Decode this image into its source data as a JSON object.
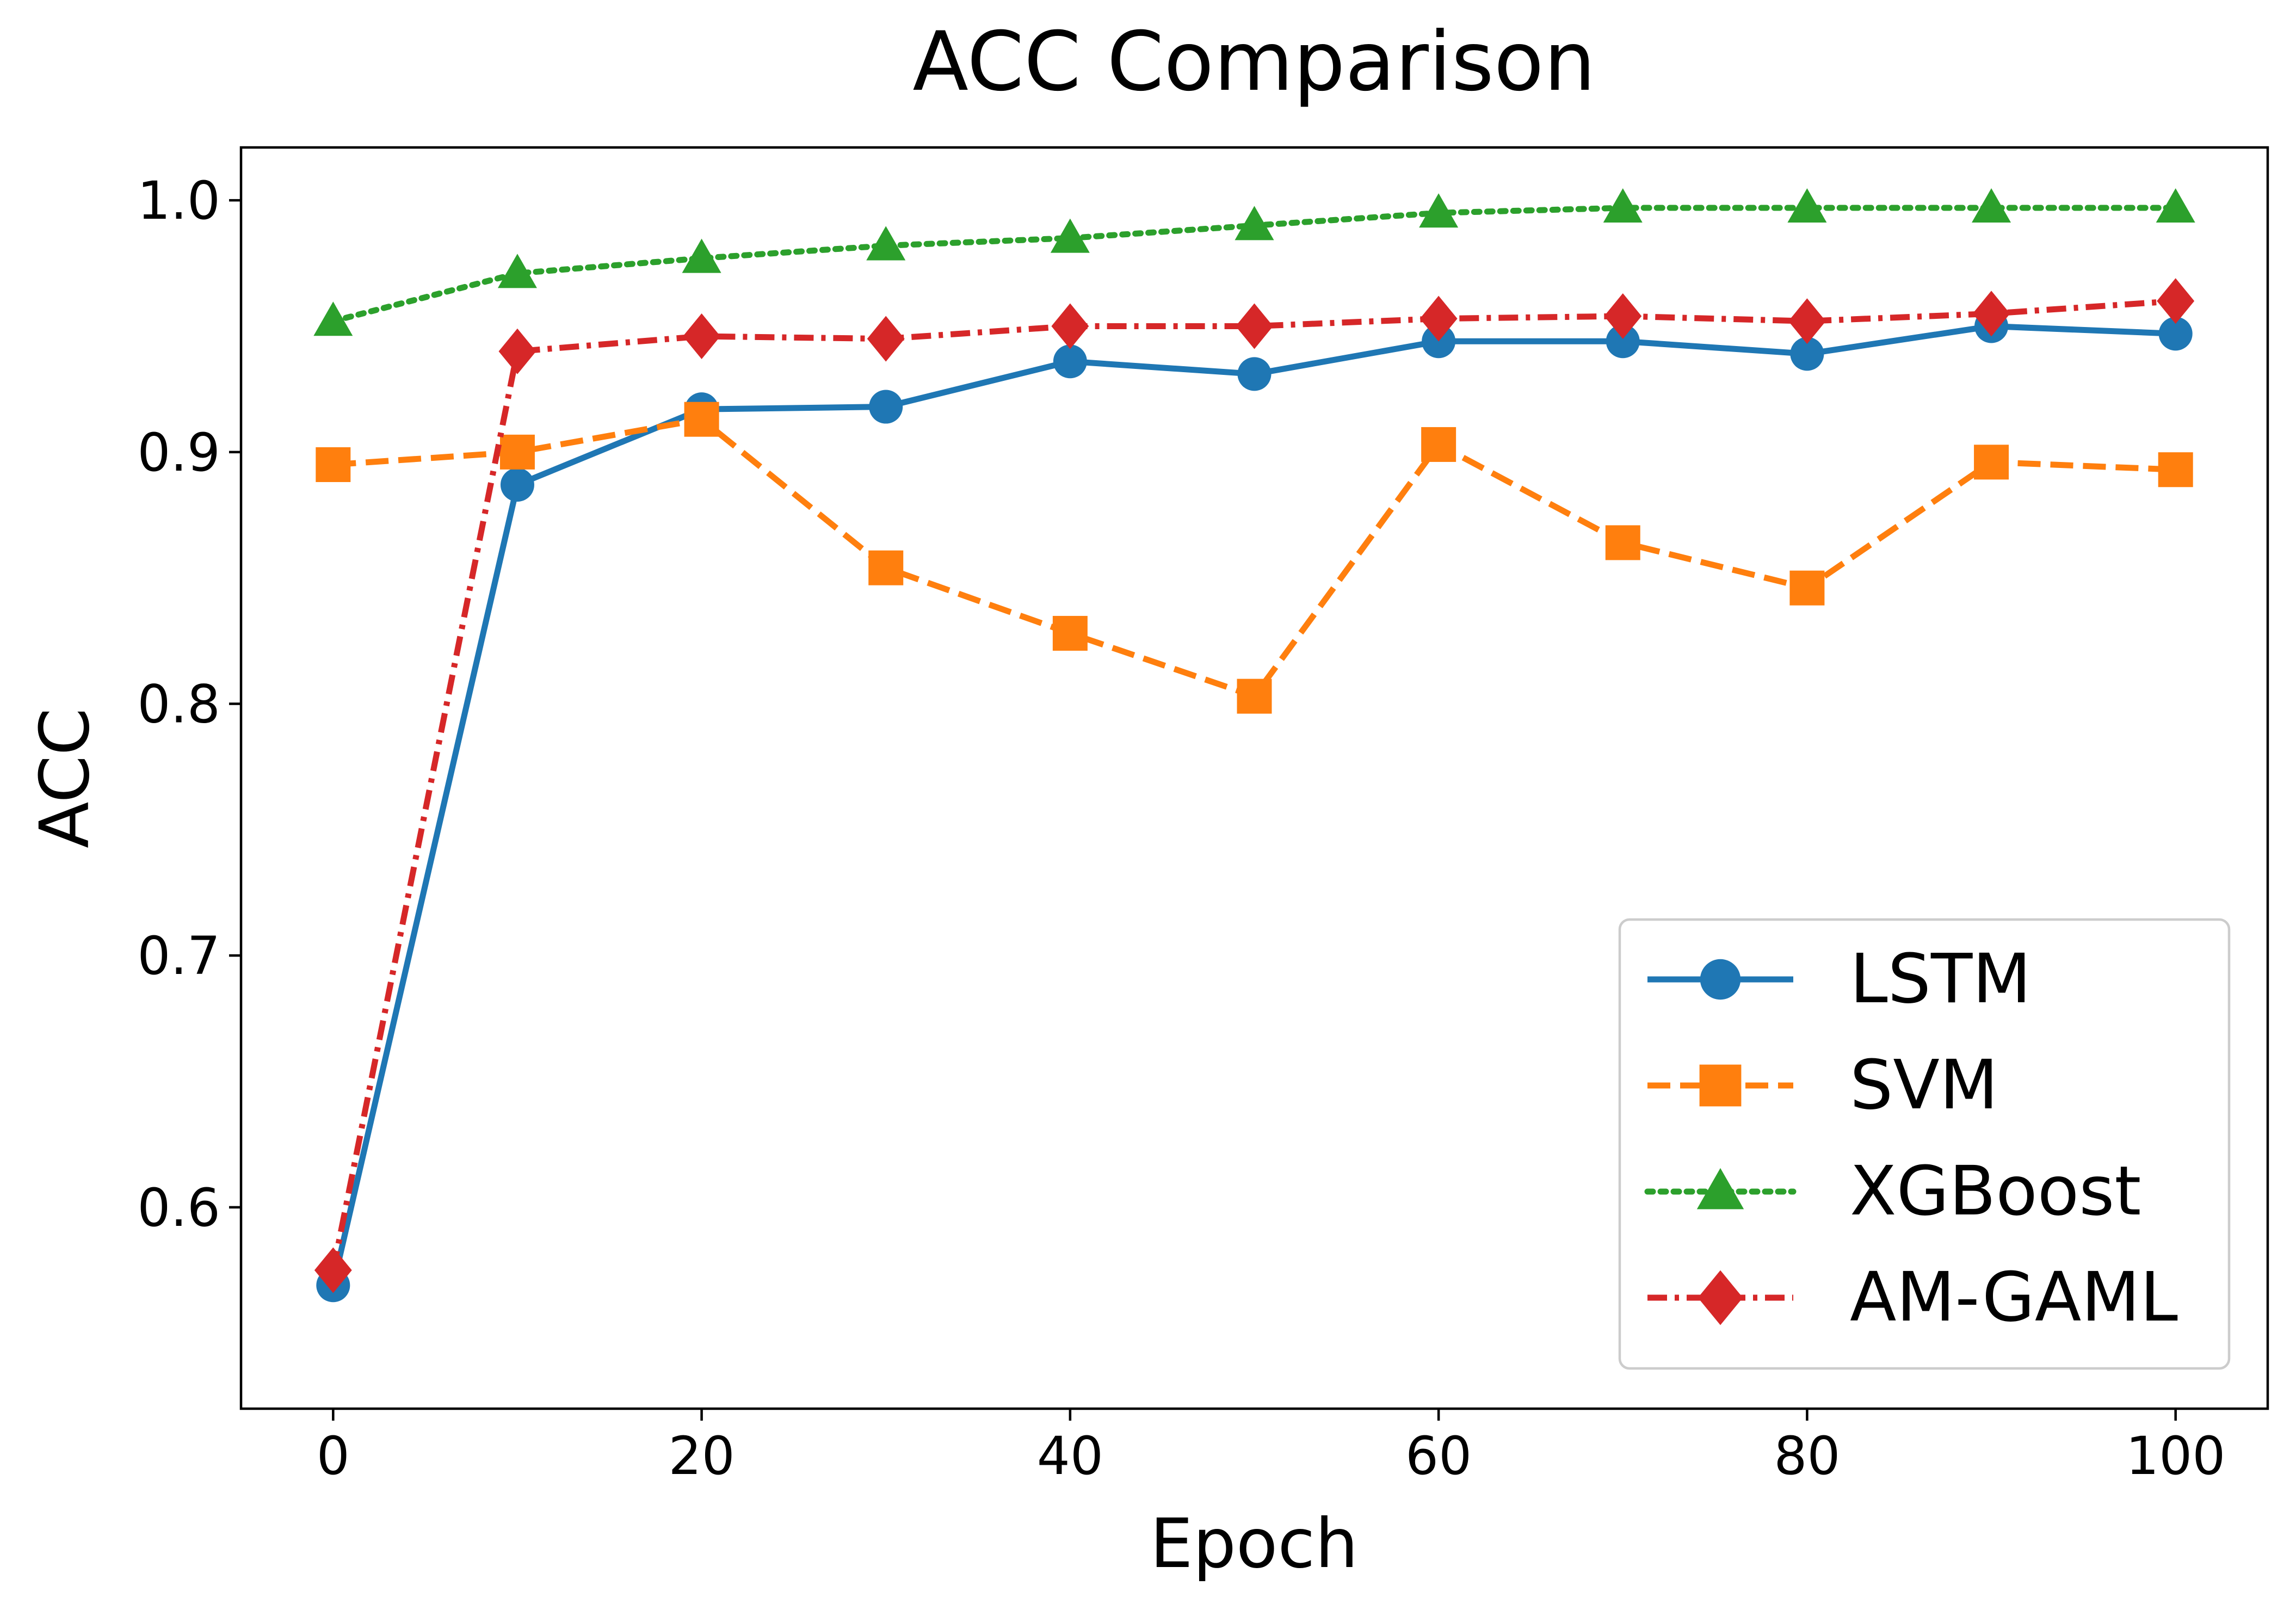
{
  "chart_data": {
    "type": "line",
    "title": "ACC Comparison",
    "xlabel": "Epoch",
    "ylabel": "ACC",
    "xlim": [
      -5,
      105
    ],
    "ylim": [
      0.52,
      1.021
    ],
    "xticks": [
      0,
      20,
      40,
      60,
      80,
      100
    ],
    "xtick_labels": [
      "0",
      "20",
      "40",
      "60",
      "80",
      "100"
    ],
    "yticks": [
      0.6,
      0.7,
      0.8,
      0.9,
      1.0
    ],
    "ytick_labels": [
      "0.6",
      "0.7",
      "0.8",
      "0.9",
      "1.0"
    ],
    "grid": false,
    "legend_position": "lower-right",
    "x": [
      0,
      10,
      20,
      30,
      40,
      50,
      60,
      70,
      80,
      90,
      100
    ],
    "series": [
      {
        "name": "LSTM",
        "color": "#1f77b4",
        "linestyle": "solid",
        "marker": "circle",
        "values": [
          0.569,
          0.887,
          0.917,
          0.918,
          0.936,
          0.931,
          0.944,
          0.944,
          0.939,
          0.95,
          0.947
        ]
      },
      {
        "name": "SVM",
        "color": "#ff7f0e",
        "linestyle": "dashed",
        "marker": "square",
        "values": [
          0.895,
          0.9,
          0.913,
          0.854,
          0.828,
          0.803,
          0.903,
          0.864,
          0.846,
          0.896,
          0.893
        ]
      },
      {
        "name": "XGBoost",
        "color": "#2ca02c",
        "linestyle": "dotted",
        "marker": "triangle",
        "values": [
          0.952,
          0.971,
          0.977,
          0.982,
          0.985,
          0.99,
          0.995,
          0.997,
          0.997,
          0.997,
          0.997
        ]
      },
      {
        "name": "AM-GAML",
        "color": "#d62728",
        "linestyle": "dashdot",
        "marker": "diamond",
        "values": [
          0.575,
          0.94,
          0.946,
          0.945,
          0.95,
          0.95,
          0.953,
          0.954,
          0.952,
          0.955,
          0.96
        ]
      }
    ]
  }
}
